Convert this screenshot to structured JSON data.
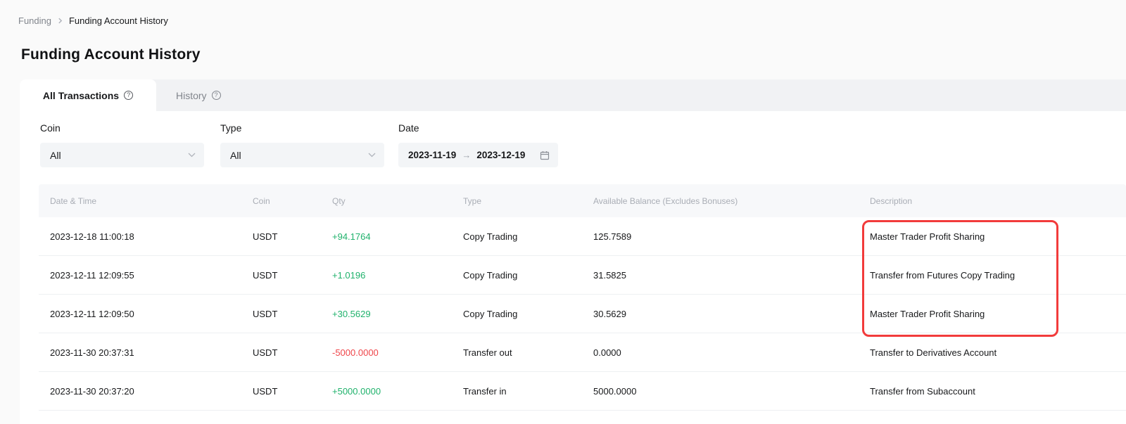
{
  "breadcrumb": {
    "parent": "Funding",
    "current": "Funding Account History"
  },
  "page_title": "Funding Account History",
  "tabs": [
    {
      "label": "All Transactions",
      "active": true
    },
    {
      "label": "History",
      "active": false
    }
  ],
  "filters": {
    "coin": {
      "label": "Coin",
      "value": "All"
    },
    "type": {
      "label": "Type",
      "value": "All"
    },
    "date": {
      "label": "Date",
      "start": "2023-11-19",
      "end": "2023-12-19",
      "separator": "→"
    }
  },
  "table": {
    "columns": [
      "Date & Time",
      "Coin",
      "Qty",
      "Type",
      "Available Balance (Excludes Bonuses)",
      "Description"
    ],
    "rows": [
      {
        "datetime": "2023-12-18 11:00:18",
        "coin": "USDT",
        "qty": "+94.1764",
        "qty_dir": "pos",
        "type": "Copy Trading",
        "balance": "125.7589",
        "description": "Master Trader Profit Sharing"
      },
      {
        "datetime": "2023-12-11 12:09:55",
        "coin": "USDT",
        "qty": "+1.0196",
        "qty_dir": "pos",
        "type": "Copy Trading",
        "balance": "31.5825",
        "description": "Transfer from Futures Copy Trading"
      },
      {
        "datetime": "2023-12-11 12:09:50",
        "coin": "USDT",
        "qty": "+30.5629",
        "qty_dir": "pos",
        "type": "Copy Trading",
        "balance": "30.5629",
        "description": "Master Trader Profit Sharing"
      },
      {
        "datetime": "2023-11-30 20:37:31",
        "coin": "USDT",
        "qty": "-5000.0000",
        "qty_dir": "neg",
        "type": "Transfer out",
        "balance": "0.0000",
        "description": "Transfer to Derivatives Account"
      },
      {
        "datetime": "2023-11-30 20:37:20",
        "coin": "USDT",
        "qty": "+5000.0000",
        "qty_dir": "pos",
        "type": "Transfer in",
        "balance": "5000.0000",
        "description": "Transfer from Subaccount"
      }
    ]
  },
  "annotation": {
    "type": "highlight-box",
    "column": "Description",
    "rows_covered": "1-3"
  },
  "colors": {
    "positive": "#20b26c",
    "negative": "#ef454a",
    "annotation": "#f23b3b",
    "tab_strip": "#f1f2f4",
    "field_bg": "#f3f5f7"
  }
}
